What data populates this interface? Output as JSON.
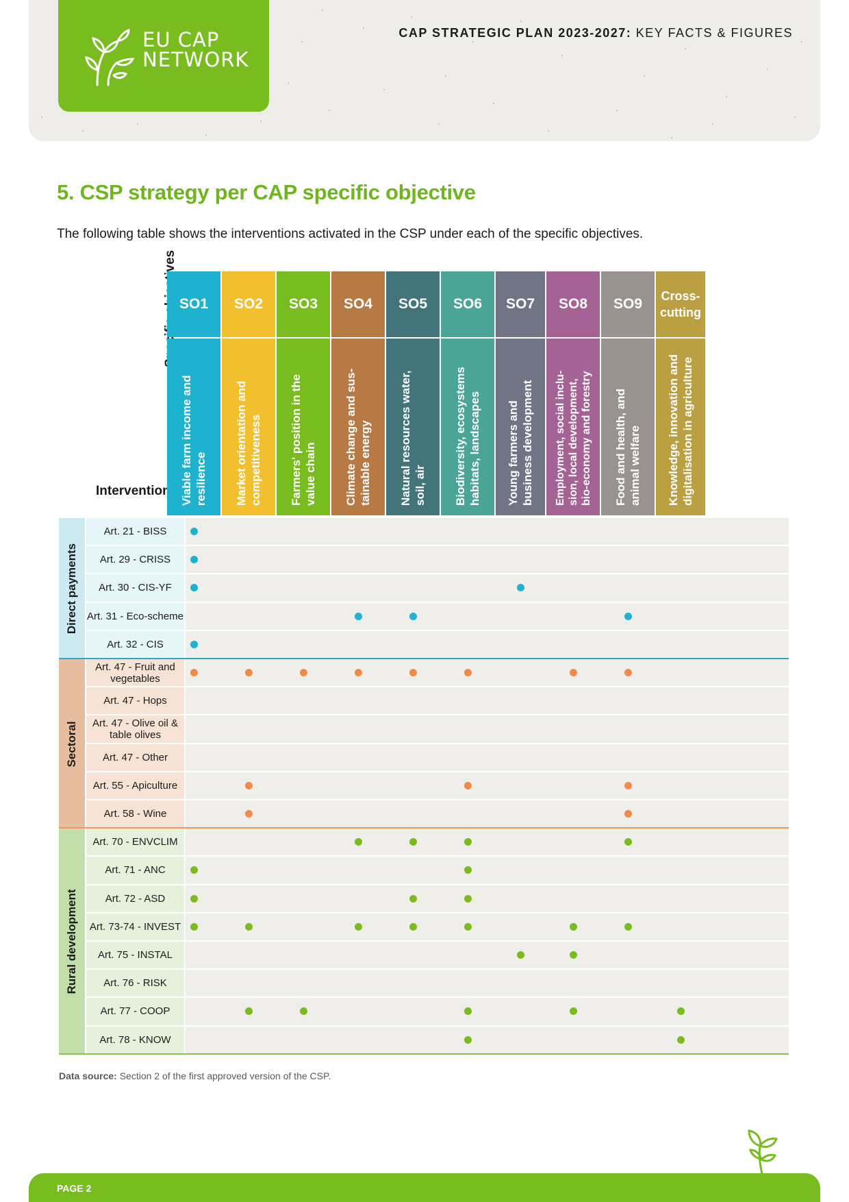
{
  "header": {
    "logo_line1": "EU CAP",
    "logo_line2": "NETWORK",
    "title_bold": "CAP STRATEGIC PLAN 2023-2027:",
    "title_rest": "KEY FACTS & FIGURES"
  },
  "section": {
    "title": "5. CSP strategy per CAP specific objective",
    "intro": "The following table shows the interventions activated in the CSP under each of the specific objectives."
  },
  "matrix": {
    "label_specific_objectives": "Specific objectives",
    "label_interventions": "Interventions",
    "objectives": [
      {
        "code": "SO1",
        "desc": "Viable farm income and\nresilience",
        "color": "#1fb2cf"
      },
      {
        "code": "SO2",
        "desc": "Market orientation and\ncompetitiveness",
        "color": "#f2c02f"
      },
      {
        "code": "SO3",
        "desc": "Farmers' position in the\nvalue chain",
        "color": "#78bc1f"
      },
      {
        "code": "SO4",
        "desc": "Climate change and sus-\ntainable energy",
        "color": "#b77a45"
      },
      {
        "code": "SO5",
        "desc": "Natural resources water,\nsoil, air",
        "color": "#437479"
      },
      {
        "code": "SO6",
        "desc": "Biodiversity, ecosystems\nhabitats, landscapes",
        "color": "#4aa596"
      },
      {
        "code": "SO7",
        "desc": "Young farmers and\nbusiness development",
        "color": "#707484"
      },
      {
        "code": "SO8",
        "desc": "Employment, social inclu-\nsion, local development,\nbio-economy and forestry",
        "color": "#a56395"
      },
      {
        "code": "SO9",
        "desc": "Food and health, and\nanimal welfare",
        "color": "#99928e"
      },
      {
        "code": "Cross-\ncutting",
        "desc": "Knowledge, innovation and\ndigitalisation in agriculture",
        "color": "#bb9f43"
      }
    ],
    "groups": [
      {
        "name": "Direct payments",
        "band_color": "#cdeaf0",
        "name_bg": "#e6f5f8",
        "divider_color": "#2aa9c8",
        "dot_class": "dp",
        "rows": [
          {
            "label": "Art. 21 - BISS",
            "dots": [
              1
            ]
          },
          {
            "label": "Art. 29 - CRISS",
            "dots": [
              1
            ]
          },
          {
            "label": "Art. 30 - CIS-YF",
            "dots": [
              1,
              7
            ]
          },
          {
            "label": "Art. 31 - Eco-scheme",
            "dots": [
              4,
              5,
              9
            ]
          },
          {
            "label": "Art. 32 - CIS",
            "dots": [
              1
            ]
          }
        ]
      },
      {
        "name": "Sectoral",
        "band_color": "#e7bd9f",
        "name_bg": "#f6e3d6",
        "divider_color": "#ee9b62",
        "dot_class": "sec",
        "rows": [
          {
            "label": "Art. 47 - Fruit and vegetables",
            "dots": [
              1,
              2,
              3,
              4,
              5,
              6,
              8,
              9
            ]
          },
          {
            "label": "Art. 47 - Hops",
            "dots": []
          },
          {
            "label": "Art. 47 - Olive oil & table olives",
            "dots": []
          },
          {
            "label": "Art. 47 - Other",
            "dots": []
          },
          {
            "label": "Art. 55 - Apiculture",
            "dots": [
              2,
              6,
              9
            ]
          },
          {
            "label": "Art. 58 - Wine",
            "dots": [
              2,
              9
            ]
          }
        ]
      },
      {
        "name": "Rural development",
        "band_color": "#c2dfab",
        "name_bg": "#e5f1dc",
        "divider_color": "#8cc153",
        "dot_class": "rd",
        "rows": [
          {
            "label": "Art. 70 - ENVCLIM",
            "dots": [
              4,
              5,
              6,
              9
            ]
          },
          {
            "label": "Art. 71 - ANC",
            "dots": [
              1,
              6
            ]
          },
          {
            "label": "Art. 72 - ASD",
            "dots": [
              1,
              5,
              6
            ]
          },
          {
            "label": "Art. 73-74 - INVEST",
            "dots": [
              1,
              2,
              4,
              5,
              6,
              8,
              9
            ]
          },
          {
            "label": "Art. 75 - INSTAL",
            "dots": [
              7,
              8
            ]
          },
          {
            "label": "Art. 76 - RISK",
            "dots": []
          },
          {
            "label": "Art. 77 - COOP",
            "dots": [
              2,
              3,
              6,
              8,
              10
            ]
          },
          {
            "label": "Art. 78 - KNOW",
            "dots": [
              6,
              10
            ]
          }
        ]
      }
    ]
  },
  "source": {
    "label": "Data source:",
    "text": "Section 2 of the first approved version of the CSP."
  },
  "footer": {
    "page": "PAGE 2"
  }
}
